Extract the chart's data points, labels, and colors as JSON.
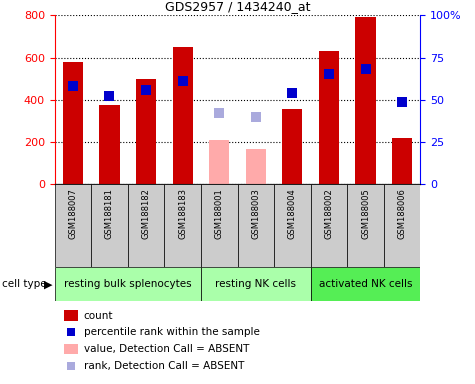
{
  "title": "GDS2957 / 1434240_at",
  "samples": [
    "GSM188007",
    "GSM188181",
    "GSM188182",
    "GSM188183",
    "GSM188001",
    "GSM188003",
    "GSM188004",
    "GSM188002",
    "GSM188005",
    "GSM188006"
  ],
  "bar_values": [
    580,
    375,
    500,
    648,
    210,
    165,
    355,
    630,
    790,
    220
  ],
  "bar_absent": [
    false,
    false,
    false,
    false,
    true,
    true,
    false,
    false,
    false,
    false
  ],
  "percentile_values": [
    58,
    52,
    56,
    61,
    42,
    40,
    54,
    65,
    68,
    49
  ],
  "percentile_absent": [
    false,
    false,
    false,
    false,
    true,
    true,
    false,
    false,
    false,
    false
  ],
  "cell_types": [
    {
      "label": "resting bulk splenocytes",
      "start": 0,
      "end": 3,
      "color": "#aaffaa"
    },
    {
      "label": "resting NK cells",
      "start": 4,
      "end": 6,
      "color": "#aaffaa"
    },
    {
      "label": "activated NK cells",
      "start": 7,
      "end": 9,
      "color": "#55ee55"
    }
  ],
  "ylim_left": [
    0,
    800
  ],
  "ylim_right": [
    0,
    100
  ],
  "yticks_left": [
    0,
    200,
    400,
    600,
    800
  ],
  "yticks_right": [
    0,
    25,
    50,
    75,
    100
  ],
  "ytick_labels_right": [
    "0",
    "25",
    "50",
    "75",
    "100%"
  ],
  "bar_color_present": "#cc0000",
  "bar_color_absent": "#ffaaaa",
  "marker_color_present": "#0000cc",
  "marker_color_absent": "#aaaadd",
  "bar_width": 0.55,
  "marker_size": 7
}
